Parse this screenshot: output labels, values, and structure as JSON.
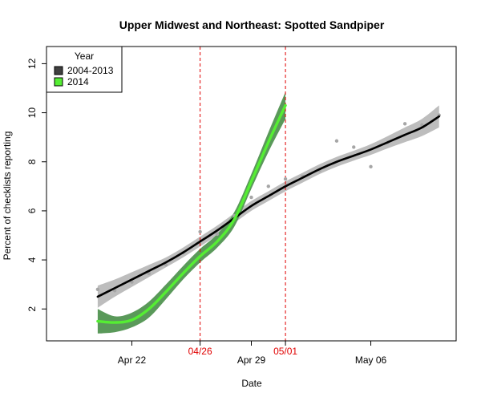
{
  "chart_data": {
    "type": "line",
    "title": "Upper Midwest and Northeast: Spotted Sandpiper",
    "xlabel": "Date",
    "ylabel": "Percent of checklists reporting",
    "x_axis": {
      "type": "date",
      "year": 2014,
      "range": [
        "2014-04-17",
        "2014-05-11"
      ]
    },
    "ylim": [
      0.7,
      12.7
    ],
    "x_ticks": [
      {
        "date": "2014-04-22",
        "label": "Apr 22"
      },
      {
        "date": "2014-04-29",
        "label": "Apr 29"
      },
      {
        "date": "2014-05-06",
        "label": "May 06"
      }
    ],
    "y_ticks": [
      2,
      4,
      6,
      8,
      10,
      12
    ],
    "reference_lines": [
      {
        "date": "2014-04-26",
        "label": "04/26",
        "color": "#e00000"
      },
      {
        "date": "2014-05-01",
        "label": "05/01",
        "color": "#e00000"
      }
    ],
    "legend": {
      "title": "Year",
      "position": "top-left",
      "entries": [
        {
          "label": "2004-2013",
          "color": "#404040"
        },
        {
          "label": "2014",
          "color": "#55ee33"
        }
      ]
    },
    "series": [
      {
        "name": "2004-2013",
        "color": "#000000",
        "band_color": "#bdbdbd",
        "points": [
          {
            "date": "2014-04-20",
            "y": 2.8
          },
          {
            "date": "2014-04-21",
            "y": 2.75
          },
          {
            "date": "2014-04-22",
            "y": 3.1
          },
          {
            "date": "2014-04-23",
            "y": 3.45
          },
          {
            "date": "2014-04-24",
            "y": 3.8
          },
          {
            "date": "2014-04-25",
            "y": 4.3
          },
          {
            "date": "2014-04-26",
            "y": 5.15
          },
          {
            "date": "2014-04-27",
            "y": 5.05
          },
          {
            "date": "2014-04-28",
            "y": 5.8
          },
          {
            "date": "2014-04-29",
            "y": 6.55
          },
          {
            "date": "2014-04-30",
            "y": 7.0
          },
          {
            "date": "2014-05-01",
            "y": 7.3
          },
          {
            "date": "2014-05-02",
            "y": 7.4
          },
          {
            "date": "2014-05-03",
            "y": 7.65
          },
          {
            "date": "2014-05-04",
            "y": 8.85
          },
          {
            "date": "2014-05-05",
            "y": 8.6
          },
          {
            "date": "2014-05-06",
            "y": 7.8
          },
          {
            "date": "2014-05-07",
            "y": 8.8
          },
          {
            "date": "2014-05-08",
            "y": 9.55
          },
          {
            "date": "2014-05-09",
            "y": 9.5
          },
          {
            "date": "2014-05-10",
            "y": 9.9
          }
        ],
        "fit": [
          {
            "date": "2014-04-20",
            "y": 2.5,
            "lower": 2.05,
            "upper": 2.95
          },
          {
            "date": "2014-04-21",
            "y": 2.85,
            "lower": 2.5,
            "upper": 3.2
          },
          {
            "date": "2014-04-22",
            "y": 3.2,
            "lower": 2.9,
            "upper": 3.5
          },
          {
            "date": "2014-04-23",
            "y": 3.55,
            "lower": 3.3,
            "upper": 3.8
          },
          {
            "date": "2014-04-24",
            "y": 3.9,
            "lower": 3.7,
            "upper": 4.1
          },
          {
            "date": "2014-04-25",
            "y": 4.3,
            "lower": 4.1,
            "upper": 4.5
          },
          {
            "date": "2014-04-26",
            "y": 4.75,
            "lower": 4.55,
            "upper": 4.95
          },
          {
            "date": "2014-04-27",
            "y": 5.2,
            "lower": 5.0,
            "upper": 5.4
          },
          {
            "date": "2014-04-28",
            "y": 5.7,
            "lower": 5.5,
            "upper": 5.9
          },
          {
            "date": "2014-04-29",
            "y": 6.2,
            "lower": 6.0,
            "upper": 6.4
          },
          {
            "date": "2014-04-30",
            "y": 6.6,
            "lower": 6.4,
            "upper": 6.8
          },
          {
            "date": "2014-05-01",
            "y": 7.0,
            "lower": 6.8,
            "upper": 7.2
          },
          {
            "date": "2014-05-02",
            "y": 7.35,
            "lower": 7.15,
            "upper": 7.55
          },
          {
            "date": "2014-05-03",
            "y": 7.7,
            "lower": 7.5,
            "upper": 7.9
          },
          {
            "date": "2014-05-04",
            "y": 8.0,
            "lower": 7.8,
            "upper": 8.2
          },
          {
            "date": "2014-05-05",
            "y": 8.25,
            "lower": 8.05,
            "upper": 8.45
          },
          {
            "date": "2014-05-06",
            "y": 8.5,
            "lower": 8.28,
            "upper": 8.72
          },
          {
            "date": "2014-05-07",
            "y": 8.8,
            "lower": 8.55,
            "upper": 9.05
          },
          {
            "date": "2014-05-08",
            "y": 9.1,
            "lower": 8.8,
            "upper": 9.4
          },
          {
            "date": "2014-05-09",
            "y": 9.4,
            "lower": 9.05,
            "upper": 9.75
          },
          {
            "date": "2014-05-10",
            "y": 9.85,
            "lower": 9.4,
            "upper": 10.3
          }
        ]
      },
      {
        "name": "2014",
        "color": "#55ee33",
        "band_color": "#5a995a",
        "fit": [
          {
            "date": "2014-04-20",
            "y": 1.5,
            "lower": 1.0,
            "upper": 2.0
          },
          {
            "date": "2014-04-21",
            "y": 1.45,
            "lower": 1.05,
            "upper": 1.7
          },
          {
            "date": "2014-04-22",
            "y": 1.55,
            "lower": 1.25,
            "upper": 1.85
          },
          {
            "date": "2014-04-23",
            "y": 2.0,
            "lower": 1.65,
            "upper": 2.3
          },
          {
            "date": "2014-04-24",
            "y": 2.7,
            "lower": 2.4,
            "upper": 3.0
          },
          {
            "date": "2014-04-25",
            "y": 3.45,
            "lower": 3.2,
            "upper": 3.75
          },
          {
            "date": "2014-04-26",
            "y": 4.15,
            "lower": 3.9,
            "upper": 4.45
          },
          {
            "date": "2014-04-27",
            "y": 4.75,
            "lower": 4.5,
            "upper": 5.05
          },
          {
            "date": "2014-04-28",
            "y": 5.65,
            "lower": 5.35,
            "upper": 5.95
          },
          {
            "date": "2014-04-29",
            "y": 7.2,
            "lower": 6.9,
            "upper": 7.5
          },
          {
            "date": "2014-04-30",
            "y": 8.8,
            "lower": 8.4,
            "upper": 9.2
          },
          {
            "date": "2014-05-01",
            "y": 10.3,
            "lower": 9.75,
            "upper": 10.85
          }
        ]
      }
    ]
  }
}
